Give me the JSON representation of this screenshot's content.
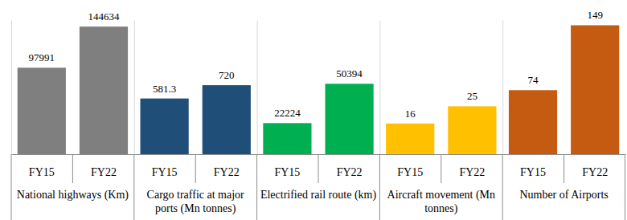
{
  "chart_data": [
    {
      "type": "bar",
      "xlabel": "National highways (Km)",
      "categories": [
        "FY15",
        "FY22"
      ],
      "values": [
        97991,
        144634
      ],
      "color": "#7f7f7f",
      "ylim": [
        0,
        152000
      ],
      "data_labels": true,
      "tick_labels": "x"
    },
    {
      "type": "bar",
      "xlabel": "Cargo traffic at major ports (Mn tonnes)",
      "categories": [
        "FY15",
        "FY22"
      ],
      "values": [
        581.3,
        720
      ],
      "color": "#1f4e79",
      "ylim": [
        0,
        1400
      ],
      "data_labels": true,
      "tick_labels": "x"
    },
    {
      "type": "bar",
      "xlabel": "Electrified rail route (km)",
      "categories": [
        "FY15",
        "FY22"
      ],
      "values": [
        22224,
        50394
      ],
      "color": "#00b050",
      "ylim": [
        0,
        96000
      ],
      "data_labels": true,
      "tick_labels": "x"
    },
    {
      "type": "bar",
      "xlabel": "Aircraft movement (Mn tonnes)",
      "categories": [
        "FY15",
        "FY22"
      ],
      "values": [
        16,
        25
      ],
      "color": "#ffc000",
      "ylim": [
        0,
        70
      ],
      "data_labels": true,
      "tick_labels": "x"
    },
    {
      "type": "bar",
      "xlabel": "Number of Airports",
      "categories": [
        "FY15",
        "FY22"
      ],
      "values": [
        74,
        149
      ],
      "color": "#c55a11",
      "ylim": [
        0,
        155
      ],
      "data_labels": true,
      "tick_labels": "x"
    }
  ]
}
